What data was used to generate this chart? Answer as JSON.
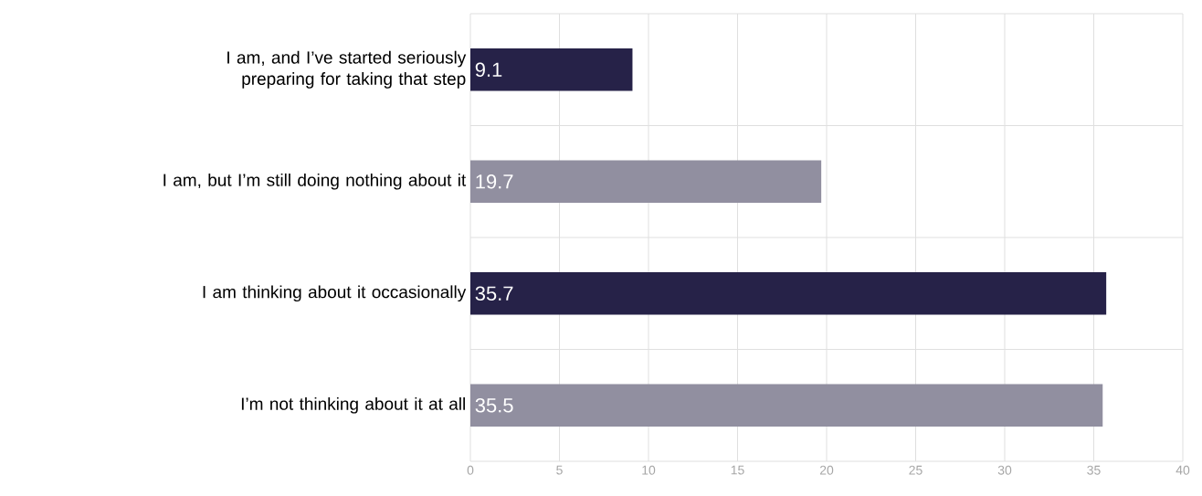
{
  "chart_data": {
    "type": "bar",
    "orientation": "horizontal",
    "categories": [
      "I am, and I’ve started seriously preparing for taking that step",
      "I am, but I’m still doing nothing about it",
      "I am thinking about it occasionally",
      "I’m not thinking about it at all"
    ],
    "values": [
      9.1,
      19.7,
      35.7,
      35.5
    ],
    "colors": [
      "#262248",
      "#918fa0",
      "#262248",
      "#918fa0"
    ],
    "xlim": [
      0,
      40
    ],
    "xticks": [
      0,
      5,
      10,
      15,
      20,
      25,
      30,
      35,
      40
    ],
    "grid": true,
    "data_labels": true
  }
}
